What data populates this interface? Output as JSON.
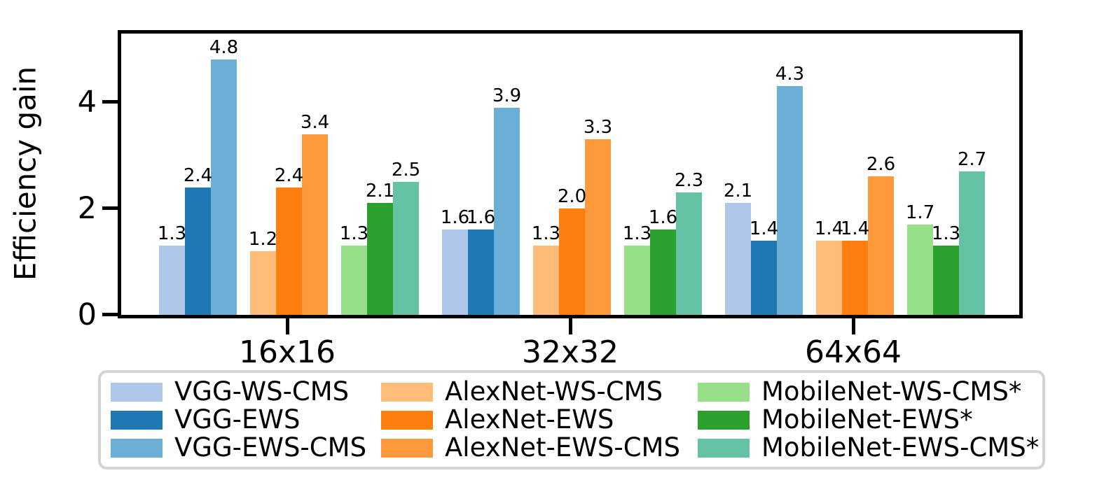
{
  "chart_data": {
    "type": "bar",
    "title": "",
    "xlabel": "",
    "ylabel": "Efficiency gain",
    "categories": [
      "16x16",
      "32x32",
      "64x64"
    ],
    "yticks": [
      0,
      2,
      4
    ],
    "ylim": [
      0,
      5.3
    ],
    "grid": false,
    "bar_value_labels": true,
    "value_label_format": "one-decimal",
    "legend_position": "bottom",
    "legend_border_color": "#d4d4d4",
    "series": [
      {
        "name": "VGG-WS-CMS",
        "color": "#aec7e8",
        "values": [
          1.3,
          1.6,
          2.1
        ]
      },
      {
        "name": "VGG-EWS",
        "color": "#1f77b4",
        "values": [
          2.4,
          1.6,
          1.4
        ]
      },
      {
        "name": "VGG-EWS-CMS",
        "color": "#6baed6",
        "values": [
          4.8,
          3.9,
          4.3
        ]
      },
      {
        "name": "AlexNet-WS-CMS",
        "color": "#ffbb78",
        "values": [
          1.2,
          1.3,
          1.4
        ]
      },
      {
        "name": "AlexNet-EWS",
        "color": "#ff7f0e",
        "values": [
          2.4,
          2.0,
          1.4
        ]
      },
      {
        "name": "AlexNet-EWS-CMS",
        "color": "#ff9a3c",
        "values": [
          3.4,
          3.3,
          2.6
        ]
      },
      {
        "name": "MobileNet-WS-CMS*",
        "color": "#98df8a",
        "values": [
          1.3,
          1.3,
          1.7
        ]
      },
      {
        "name": "MobileNet-EWS*",
        "color": "#2ca02c",
        "values": [
          2.1,
          1.6,
          1.3
        ]
      },
      {
        "name": "MobileNet-EWS-CMS*",
        "color": "#66c2a5",
        "values": [
          2.5,
          2.3,
          2.7
        ]
      }
    ],
    "legend_columns": [
      [
        0,
        1,
        2
      ],
      [
        3,
        4,
        5
      ],
      [
        6,
        7,
        8
      ]
    ]
  }
}
